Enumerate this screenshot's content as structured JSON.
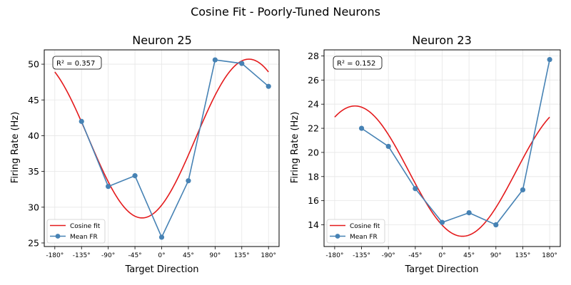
{
  "suptitle": "Cosine Fit - Poorly-Tuned Neurons",
  "colors": {
    "fit": "#e41a1c",
    "data": "#4682b4",
    "grid": "#e6e6e6"
  },
  "x_tick_labels": [
    "-180°",
    "-135°",
    "-90°",
    "-45°",
    "0°",
    "45°",
    "90°",
    "135°",
    "180°"
  ],
  "chart_data": [
    {
      "type": "line",
      "title": "Neuron 25",
      "xlabel": "Target Direction",
      "ylabel": "Firing Rate (Hz)",
      "r2_label": "R² = 0.357",
      "xlim": [
        -180,
        180
      ],
      "ylim": [
        24.5,
        52
      ],
      "yticks": [
        25,
        30,
        35,
        40,
        45,
        50
      ],
      "x_ticks": [
        -180,
        -135,
        -90,
        -45,
        0,
        45,
        90,
        135,
        180
      ],
      "legend": {
        "position": "bottom-left",
        "fit_label": "Cosine fit",
        "data_label": "Mean FR"
      },
      "series": [
        {
          "name": "Mean FR",
          "x": [
            -135,
            -90,
            -45,
            0,
            45,
            90,
            135,
            180
          ],
          "y": [
            42.0,
            32.9,
            34.4,
            25.8,
            33.7,
            50.6,
            50.1,
            46.9
          ]
        }
      ],
      "fit": {
        "name": "Cosine fit",
        "baseline": 39.6,
        "amplitude": 11.1,
        "preferred_deg": 147
      }
    },
    {
      "type": "line",
      "title": "Neuron 23",
      "xlabel": "Target Direction",
      "ylabel": "Firing Rate (Hz)",
      "r2_label": "R² = 0.152",
      "xlim": [
        -180,
        180
      ],
      "ylim": [
        12.2,
        28.5
      ],
      "yticks": [
        14,
        16,
        18,
        20,
        22,
        24,
        26,
        28
      ],
      "x_ticks": [
        -180,
        -135,
        -90,
        -45,
        0,
        45,
        90,
        135,
        180
      ],
      "legend": {
        "position": "bottom-left",
        "fit_label": "Cosine fit",
        "data_label": "Mean FR"
      },
      "series": [
        {
          "name": "Mean FR",
          "x": [
            -135,
            -90,
            -45,
            0,
            45,
            90,
            135,
            180
          ],
          "y": [
            22.0,
            20.5,
            17.0,
            14.2,
            15.0,
            14.0,
            16.9,
            27.7
          ]
        }
      ],
      "fit": {
        "name": "Cosine fit",
        "baseline": 18.45,
        "amplitude": 5.4,
        "preferred_deg": -146
      }
    }
  ]
}
